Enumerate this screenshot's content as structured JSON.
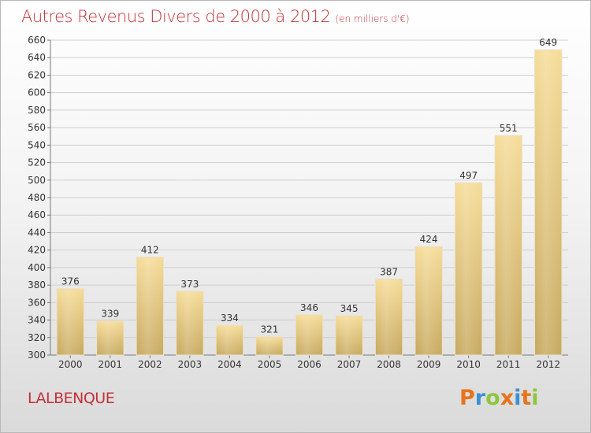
{
  "header": {
    "title": "Autres Revenus Divers de 2000 à 2012",
    "subtitle": "(en milliers d'€)"
  },
  "footer": {
    "place": "LALBENQUE",
    "logo_text": "Proxiti",
    "logo_colors": [
      "#e8731c",
      "#3a8fd6",
      "#8dc63f",
      "#e8731c",
      "#3a8fd6",
      "#e8731c",
      "#8dc63f"
    ]
  },
  "chart_data": {
    "type": "bar",
    "title": "Autres Revenus Divers de 2000 à 2012",
    "subtitle": "(en milliers d'€)",
    "xlabel": "",
    "ylabel": "",
    "categories": [
      "2000",
      "2001",
      "2002",
      "2003",
      "2004",
      "2005",
      "2006",
      "2007",
      "2008",
      "2009",
      "2010",
      "2011",
      "2012"
    ],
    "values": [
      376,
      339,
      412,
      373,
      334,
      321,
      346,
      345,
      387,
      424,
      497,
      551,
      649
    ],
    "ylim": [
      300,
      660
    ],
    "yticks": [
      300,
      320,
      340,
      360,
      380,
      400,
      420,
      440,
      460,
      480,
      500,
      520,
      540,
      560,
      580,
      600,
      620,
      640,
      660
    ],
    "grid": true,
    "data_labels": true,
    "bar_color_top": "#f6dc98",
    "bar_color_bottom": "#c7a95f"
  }
}
